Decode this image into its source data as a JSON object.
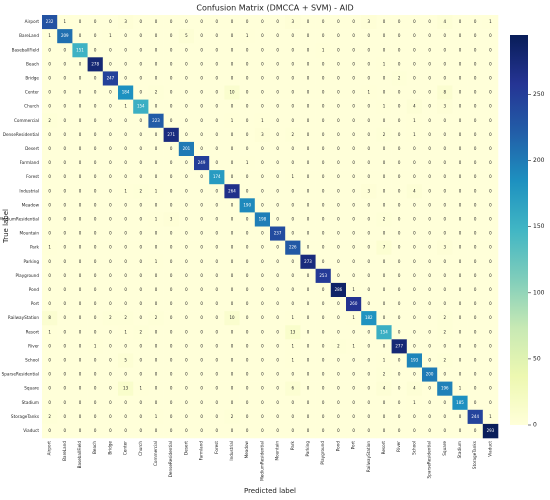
{
  "chart_data": {
    "type": "heatmap",
    "title": "Confusion Matrix (DMCCA + SVM) - AID",
    "xlabel": "Predicted label",
    "ylabel": "True label",
    "x_categories": [
      "Airport",
      "BareLand",
      "BaseballField",
      "Beach",
      "Bridge",
      "Center",
      "Church",
      "Commercial",
      "DenseResidential",
      "Desert",
      "Farmland",
      "Forest",
      "Industrial",
      "Meadow",
      "MediumResidential",
      "Mountain",
      "Park",
      "Parking",
      "Playground",
      "Pond",
      "Port",
      "RailwayStation",
      "Resort",
      "River",
      "School",
      "SparseResidential",
      "Square",
      "Stadium",
      "StorageTanks",
      "Viaduct"
    ],
    "y_categories": [
      "Airport",
      "BareLand",
      "BaseballField",
      "Beach",
      "Bridge",
      "Center",
      "Church",
      "Commercial",
      "DenseResidential",
      "Desert",
      "Farmland",
      "Forest",
      "Industrial",
      "Meadow",
      "MediumResidential",
      "Mountain",
      "Park",
      "Parking",
      "Playground",
      "Pond",
      "Port",
      "RailwayStation",
      "Resort",
      "River",
      "School",
      "SparseResidential",
      "Square",
      "Stadium",
      "StorageTanks",
      "Viaduct"
    ],
    "values": [
      [
        232,
        1,
        0,
        0,
        0,
        3,
        0,
        0,
        0,
        0,
        0,
        0,
        0,
        0,
        0,
        0,
        3,
        0,
        0,
        0,
        0,
        3,
        0,
        0,
        0,
        0,
        4,
        0,
        0,
        1
      ],
      [
        1,
        209,
        0,
        0,
        1,
        0,
        0,
        0,
        0,
        5,
        0,
        0,
        0,
        1,
        0,
        0,
        0,
        0,
        0,
        0,
        0,
        0,
        0,
        0,
        0,
        0,
        0,
        0,
        0,
        0
      ],
      [
        0,
        0,
        151,
        0,
        0,
        0,
        0,
        0,
        0,
        0,
        0,
        0,
        0,
        0,
        0,
        0,
        0,
        0,
        1,
        0,
        0,
        0,
        0,
        0,
        0,
        0,
        0,
        0,
        0,
        0
      ],
      [
        0,
        0,
        0,
        278,
        0,
        0,
        0,
        0,
        0,
        0,
        0,
        0,
        0,
        0,
        0,
        0,
        0,
        0,
        0,
        0,
        0,
        0,
        1,
        0,
        0,
        0,
        0,
        0,
        0,
        0
      ],
      [
        0,
        0,
        0,
        0,
        247,
        0,
        0,
        0,
        0,
        0,
        0,
        0,
        0,
        0,
        0,
        0,
        0,
        0,
        0,
        0,
        0,
        0,
        0,
        2,
        0,
        0,
        0,
        0,
        0,
        0
      ],
      [
        0,
        0,
        0,
        0,
        0,
        184,
        0,
        2,
        0,
        0,
        0,
        0,
        10,
        0,
        0,
        0,
        0,
        0,
        0,
        0,
        0,
        1,
        0,
        0,
        0,
        0,
        8,
        0,
        0,
        0
      ],
      [
        0,
        0,
        0,
        0,
        0,
        1,
        154,
        0,
        0,
        0,
        0,
        0,
        0,
        0,
        0,
        0,
        0,
        0,
        0,
        0,
        0,
        0,
        1,
        0,
        4,
        0,
        3,
        0,
        0,
        0
      ],
      [
        2,
        0,
        0,
        0,
        0,
        0,
        0,
        223,
        0,
        0,
        0,
        0,
        1,
        0,
        1,
        0,
        0,
        0,
        0,
        0,
        0,
        0,
        0,
        0,
        1,
        0,
        0,
        0,
        0,
        0
      ],
      [
        0,
        0,
        0,
        0,
        0,
        0,
        0,
        0,
        271,
        0,
        0,
        0,
        0,
        0,
        3,
        0,
        2,
        0,
        0,
        0,
        0,
        0,
        2,
        0,
        1,
        0,
        0,
        0,
        0,
        0
      ],
      [
        0,
        0,
        0,
        0,
        0,
        0,
        0,
        0,
        0,
        201,
        0,
        0,
        0,
        0,
        0,
        0,
        0,
        0,
        0,
        0,
        0,
        0,
        0,
        0,
        0,
        0,
        0,
        0,
        0,
        0
      ],
      [
        0,
        0,
        0,
        0,
        0,
        0,
        0,
        0,
        0,
        0,
        249,
        0,
        0,
        1,
        0,
        0,
        0,
        0,
        0,
        0,
        0,
        0,
        0,
        0,
        0,
        0,
        0,
        0,
        0,
        0
      ],
      [
        0,
        0,
        0,
        0,
        0,
        0,
        0,
        0,
        0,
        0,
        0,
        174,
        0,
        0,
        0,
        0,
        1,
        0,
        0,
        0,
        0,
        0,
        0,
        0,
        0,
        0,
        0,
        0,
        0,
        0
      ],
      [
        0,
        0,
        0,
        0,
        0,
        1,
        2,
        1,
        0,
        0,
        0,
        0,
        264,
        0,
        0,
        0,
        0,
        0,
        0,
        0,
        0,
        3,
        0,
        0,
        4,
        0,
        0,
        0,
        0,
        0
      ],
      [
        0,
        0,
        0,
        0,
        0,
        0,
        0,
        0,
        0,
        0,
        0,
        0,
        0,
        190,
        0,
        0,
        0,
        0,
        0,
        0,
        0,
        0,
        0,
        0,
        0,
        0,
        0,
        0,
        0,
        0
      ],
      [
        0,
        0,
        0,
        0,
        0,
        0,
        0,
        1,
        3,
        0,
        0,
        0,
        0,
        0,
        198,
        0,
        0,
        0,
        0,
        0,
        0,
        0,
        2,
        0,
        0,
        0,
        0,
        0,
        0,
        0
      ],
      [
        0,
        0,
        0,
        0,
        0,
        0,
        0,
        0,
        0,
        0,
        0,
        0,
        0,
        0,
        0,
        237,
        0,
        0,
        0,
        0,
        0,
        0,
        0,
        0,
        0,
        0,
        0,
        0,
        0,
        0
      ],
      [
        1,
        0,
        0,
        0,
        0,
        0,
        0,
        0,
        0,
        0,
        0,
        0,
        0,
        0,
        0,
        0,
        226,
        0,
        0,
        0,
        0,
        0,
        7,
        0,
        0,
        0,
        3,
        0,
        0,
        0
      ],
      [
        0,
        0,
        0,
        0,
        0,
        0,
        0,
        1,
        0,
        0,
        0,
        0,
        0,
        0,
        0,
        0,
        0,
        273,
        0,
        0,
        0,
        0,
        0,
        0,
        0,
        0,
        0,
        0,
        0,
        0
      ],
      [
        0,
        0,
        0,
        0,
        0,
        0,
        0,
        0,
        0,
        0,
        0,
        0,
        0,
        0,
        0,
        0,
        0,
        0,
        253,
        0,
        0,
        0,
        0,
        0,
        0,
        0,
        0,
        0,
        0,
        0
      ],
      [
        0,
        0,
        0,
        0,
        0,
        0,
        0,
        0,
        0,
        0,
        0,
        0,
        0,
        0,
        0,
        0,
        0,
        0,
        0,
        286,
        1,
        0,
        0,
        0,
        0,
        0,
        0,
        0,
        0,
        0
      ],
      [
        0,
        0,
        0,
        0,
        0,
        0,
        0,
        0,
        0,
        0,
        0,
        0,
        0,
        0,
        0,
        0,
        0,
        0,
        0,
        0,
        260,
        0,
        0,
        0,
        0,
        0,
        0,
        0,
        0,
        0
      ],
      [
        8,
        0,
        0,
        0,
        2,
        2,
        0,
        2,
        0,
        0,
        0,
        0,
        10,
        0,
        0,
        0,
        1,
        0,
        0,
        0,
        1,
        182,
        0,
        0,
        0,
        0,
        2,
        0,
        0,
        0
      ],
      [
        1,
        0,
        0,
        0,
        0,
        1,
        2,
        0,
        0,
        0,
        0,
        0,
        0,
        0,
        0,
        0,
        13,
        0,
        0,
        0,
        0,
        0,
        154,
        0,
        0,
        0,
        2,
        0,
        0,
        0
      ],
      [
        0,
        0,
        0,
        1,
        0,
        0,
        0,
        0,
        0,
        0,
        0,
        0,
        0,
        0,
        0,
        0,
        1,
        0,
        0,
        2,
        1,
        0,
        0,
        277,
        0,
        0,
        0,
        0,
        0,
        0
      ],
      [
        0,
        0,
        0,
        0,
        0,
        5,
        0,
        0,
        0,
        0,
        0,
        0,
        0,
        0,
        0,
        0,
        1,
        0,
        0,
        0,
        0,
        0,
        1,
        0,
        193,
        0,
        2,
        0,
        0,
        0
      ],
      [
        0,
        0,
        0,
        0,
        0,
        0,
        0,
        0,
        0,
        0,
        0,
        0,
        0,
        0,
        0,
        0,
        0,
        0,
        0,
        0,
        0,
        0,
        2,
        0,
        0,
        200,
        0,
        0,
        0,
        0
      ],
      [
        0,
        0,
        0,
        0,
        0,
        13,
        1,
        0,
        0,
        0,
        0,
        0,
        0,
        0,
        0,
        0,
        6,
        0,
        0,
        0,
        0,
        0,
        4,
        0,
        4,
        0,
        196,
        1,
        0,
        0
      ],
      [
        0,
        0,
        0,
        0,
        0,
        0,
        0,
        0,
        0,
        0,
        0,
        0,
        0,
        0,
        0,
        0,
        0,
        0,
        0,
        0,
        0,
        0,
        0,
        0,
        1,
        0,
        0,
        185,
        0,
        0
      ],
      [
        2,
        0,
        0,
        0,
        0,
        0,
        0,
        1,
        0,
        0,
        0,
        0,
        2,
        0,
        0,
        0,
        0,
        0,
        0,
        0,
        0,
        0,
        0,
        0,
        0,
        0,
        0,
        0,
        244,
        1
      ],
      [
        0,
        0,
        0,
        0,
        0,
        0,
        0,
        0,
        0,
        0,
        0,
        0,
        0,
        0,
        0,
        0,
        0,
        0,
        0,
        0,
        0,
        0,
        0,
        0,
        0,
        0,
        0,
        0,
        0,
        293
      ]
    ],
    "colormap": [
      "#ffffd9",
      "#edf8b1",
      "#c7e9b4",
      "#7fcdbb",
      "#41b6c4",
      "#1d91c0",
      "#225ea8",
      "#253494",
      "#081d58"
    ],
    "zlim": [
      0,
      295
    ],
    "colorbar_ticks": [
      0,
      50,
      100,
      150,
      200,
      250
    ]
  }
}
